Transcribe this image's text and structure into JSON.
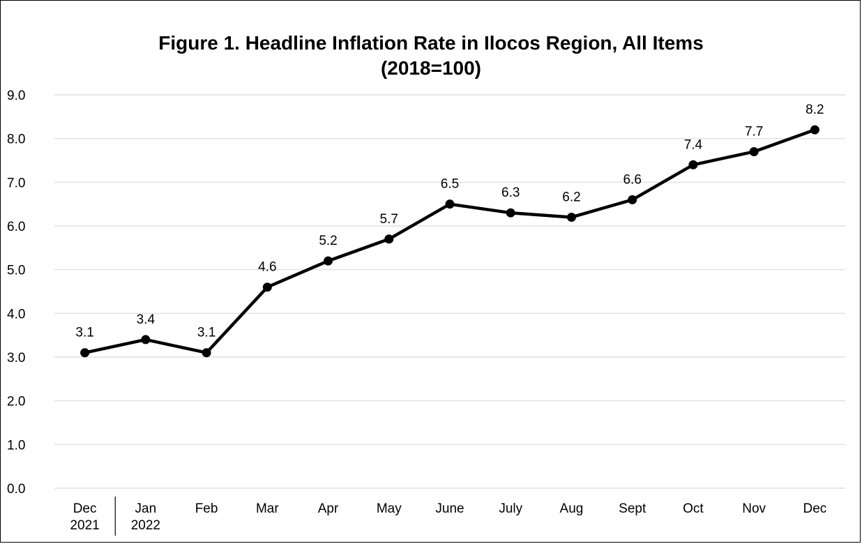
{
  "chart_data": {
    "type": "line",
    "title_line1": "Figure 1. Headline Inflation Rate in Ilocos Region, All Items",
    "title_line2": "(2018=100)",
    "xlabel": "",
    "ylabel": "",
    "categories": [
      [
        "Dec",
        "2021"
      ],
      [
        "Jan",
        "2022"
      ],
      [
        "Feb"
      ],
      [
        "Mar"
      ],
      [
        "Apr"
      ],
      [
        "May"
      ],
      [
        "June"
      ],
      [
        "July"
      ],
      [
        "Aug"
      ],
      [
        "Sept"
      ],
      [
        "Oct"
      ],
      [
        "Nov"
      ],
      [
        "Dec"
      ]
    ],
    "series": [
      {
        "values": [
          3.1,
          3.4,
          3.1,
          4.6,
          5.2,
          5.7,
          6.5,
          6.3,
          6.2,
          6.6,
          7.4,
          7.7,
          8.2
        ]
      }
    ],
    "ylim": [
      0,
      9
    ],
    "ytick_step": 1,
    "ytick_labels": [
      "0.0",
      "1.0",
      "2.0",
      "3.0",
      "4.0",
      "5.0",
      "6.0",
      "7.0",
      "8.0",
      "9.0"
    ],
    "grid": true,
    "legend": "none",
    "line_color": "#000000",
    "grid_color": "#d9d9d9"
  }
}
